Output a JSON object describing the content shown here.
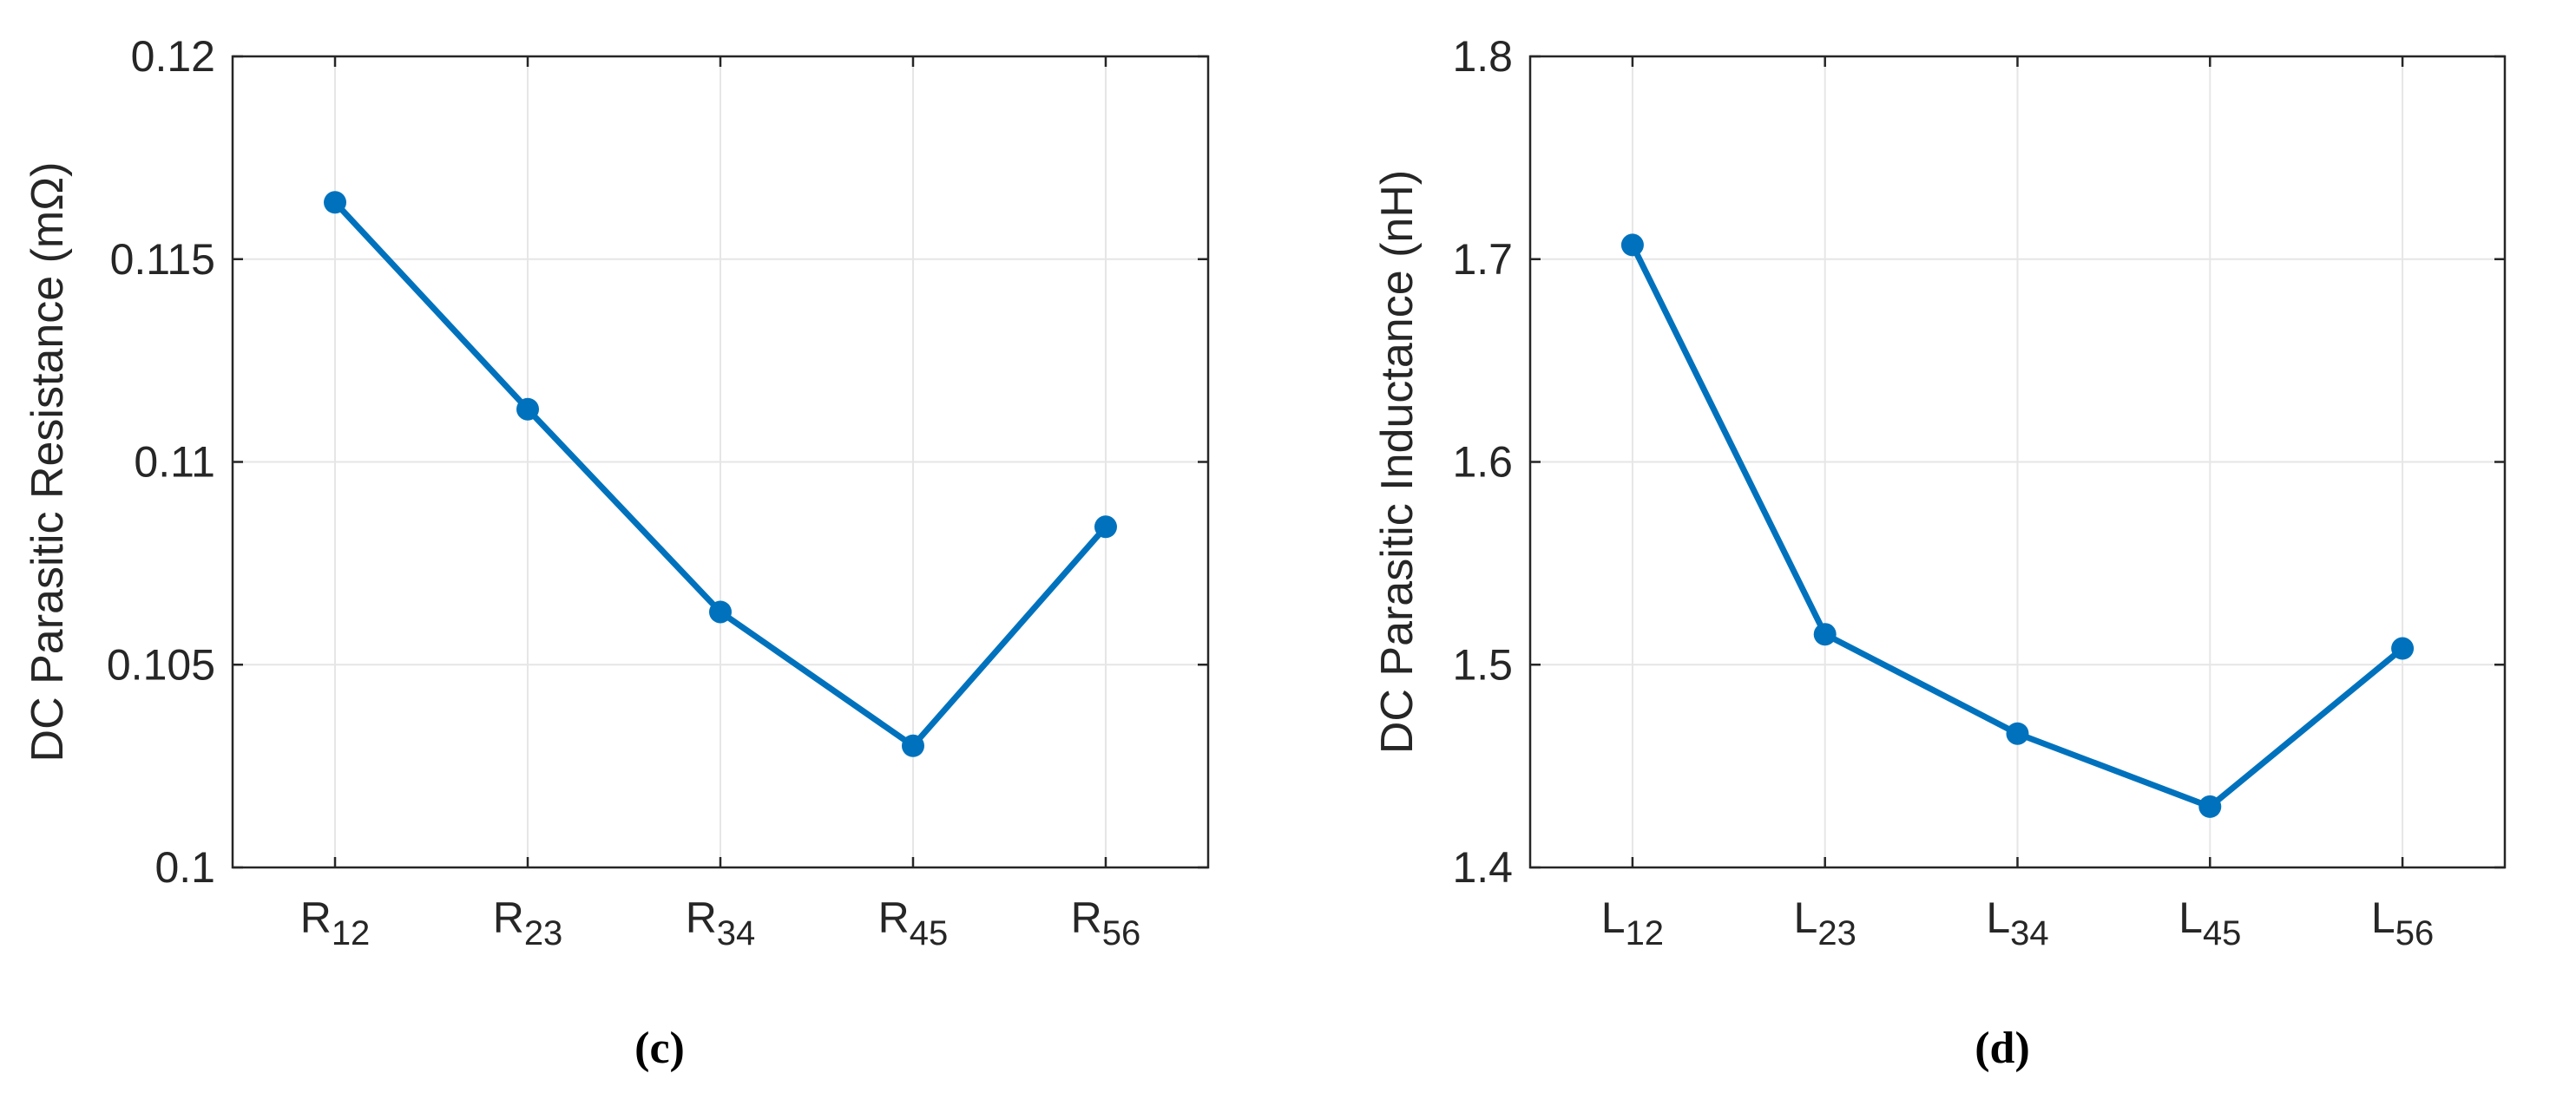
{
  "chart_data": [
    {
      "type": "line",
      "panel_label": "(c)",
      "xlabel": "",
      "ylabel": "DC Parasitic Resistance (mΩ)",
      "categories": [
        {
          "base": "R",
          "sub": "12"
        },
        {
          "base": "R",
          "sub": "23"
        },
        {
          "base": "R",
          "sub": "34"
        },
        {
          "base": "R",
          "sub": "45"
        },
        {
          "base": "R",
          "sub": "56"
        }
      ],
      "values": [
        0.1164,
        0.1113,
        0.1063,
        0.103,
        0.1084
      ],
      "ylim": [
        0.1,
        0.12
      ],
      "yticks": [
        "0.1",
        "0.105",
        "0.11",
        "0.115",
        "0.12"
      ],
      "grid": true,
      "line_color": "#0072BD"
    },
    {
      "type": "line",
      "panel_label": "(d)",
      "xlabel": "",
      "ylabel": "DC Parasitic Inductance (nH)",
      "categories": [
        {
          "base": "L",
          "sub": "12"
        },
        {
          "base": "L",
          "sub": "23"
        },
        {
          "base": "L",
          "sub": "34"
        },
        {
          "base": "L",
          "sub": "45"
        },
        {
          "base": "L",
          "sub": "56"
        }
      ],
      "values": [
        1.707,
        1.515,
        1.466,
        1.43,
        1.508
      ],
      "ylim": [
        1.4,
        1.8
      ],
      "yticks": [
        "1.4",
        "1.5",
        "1.6",
        "1.7",
        "1.8"
      ],
      "grid": true,
      "line_color": "#0072BD"
    }
  ]
}
